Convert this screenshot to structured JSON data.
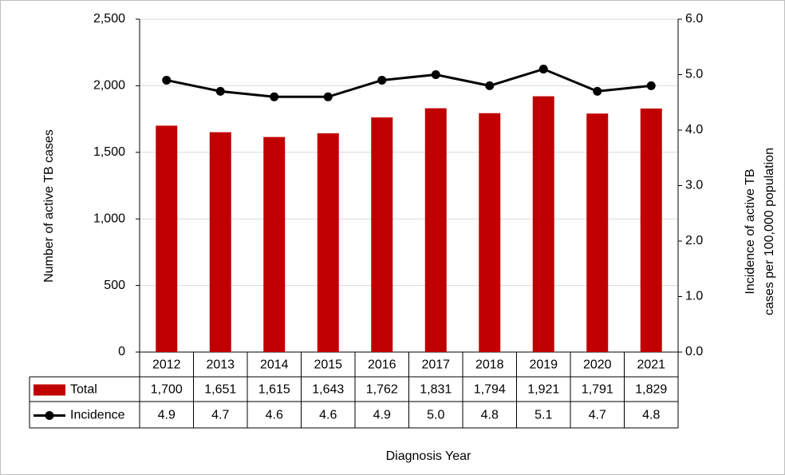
{
  "chart_data": {
    "type": "bar",
    "categories": [
      "2012",
      "2013",
      "2014",
      "2015",
      "2016",
      "2017",
      "2018",
      "2019",
      "2020",
      "2021"
    ],
    "series": [
      {
        "name": "Total",
        "type": "bar",
        "color": "#c00000",
        "values": [
          1700,
          1651,
          1615,
          1643,
          1762,
          1831,
          1794,
          1921,
          1791,
          1829
        ],
        "value_labels": [
          "1,700",
          "1,651",
          "1,615",
          "1,643",
          "1,762",
          "1,831",
          "1,794",
          "1,921",
          "1,791",
          "1,829"
        ]
      },
      {
        "name": "Incidence",
        "type": "line",
        "color": "#000000",
        "axis": "y2",
        "values": [
          4.9,
          4.7,
          4.6,
          4.6,
          4.9,
          5.0,
          4.8,
          5.1,
          4.7,
          4.8
        ],
        "value_labels": [
          "4.9",
          "4.7",
          "4.6",
          "4.6",
          "4.9",
          "5.0",
          "4.8",
          "5.1",
          "4.7",
          "4.8"
        ]
      }
    ],
    "ylabel": "Number of active TB cases",
    "y2label": [
      "Incidence of active TB",
      "cases per 100,000 population"
    ],
    "xlabel": "Diagnosis Year",
    "ylim": [
      0,
      2500
    ],
    "yticks": [
      0,
      500,
      {
        "value": 1000,
        "label": "1,000"
      },
      {
        "value": 1500,
        "label": "1,500"
      },
      {
        "value": 2000,
        "label": "2,000"
      },
      {
        "value": 2500,
        "label": "2,500"
      }
    ],
    "y2lim": [
      0,
      6
    ],
    "y2ticks": [
      {
        "value": 0,
        "label": "0.0"
      },
      {
        "value": 1,
        "label": "1.0"
      },
      {
        "value": 2,
        "label": "2.0"
      },
      {
        "value": 3,
        "label": "3.0"
      },
      {
        "value": 4,
        "label": "4.0"
      },
      {
        "value": 5,
        "label": "5.0"
      },
      {
        "value": 6,
        "label": "6.0"
      }
    ],
    "grid": true
  }
}
